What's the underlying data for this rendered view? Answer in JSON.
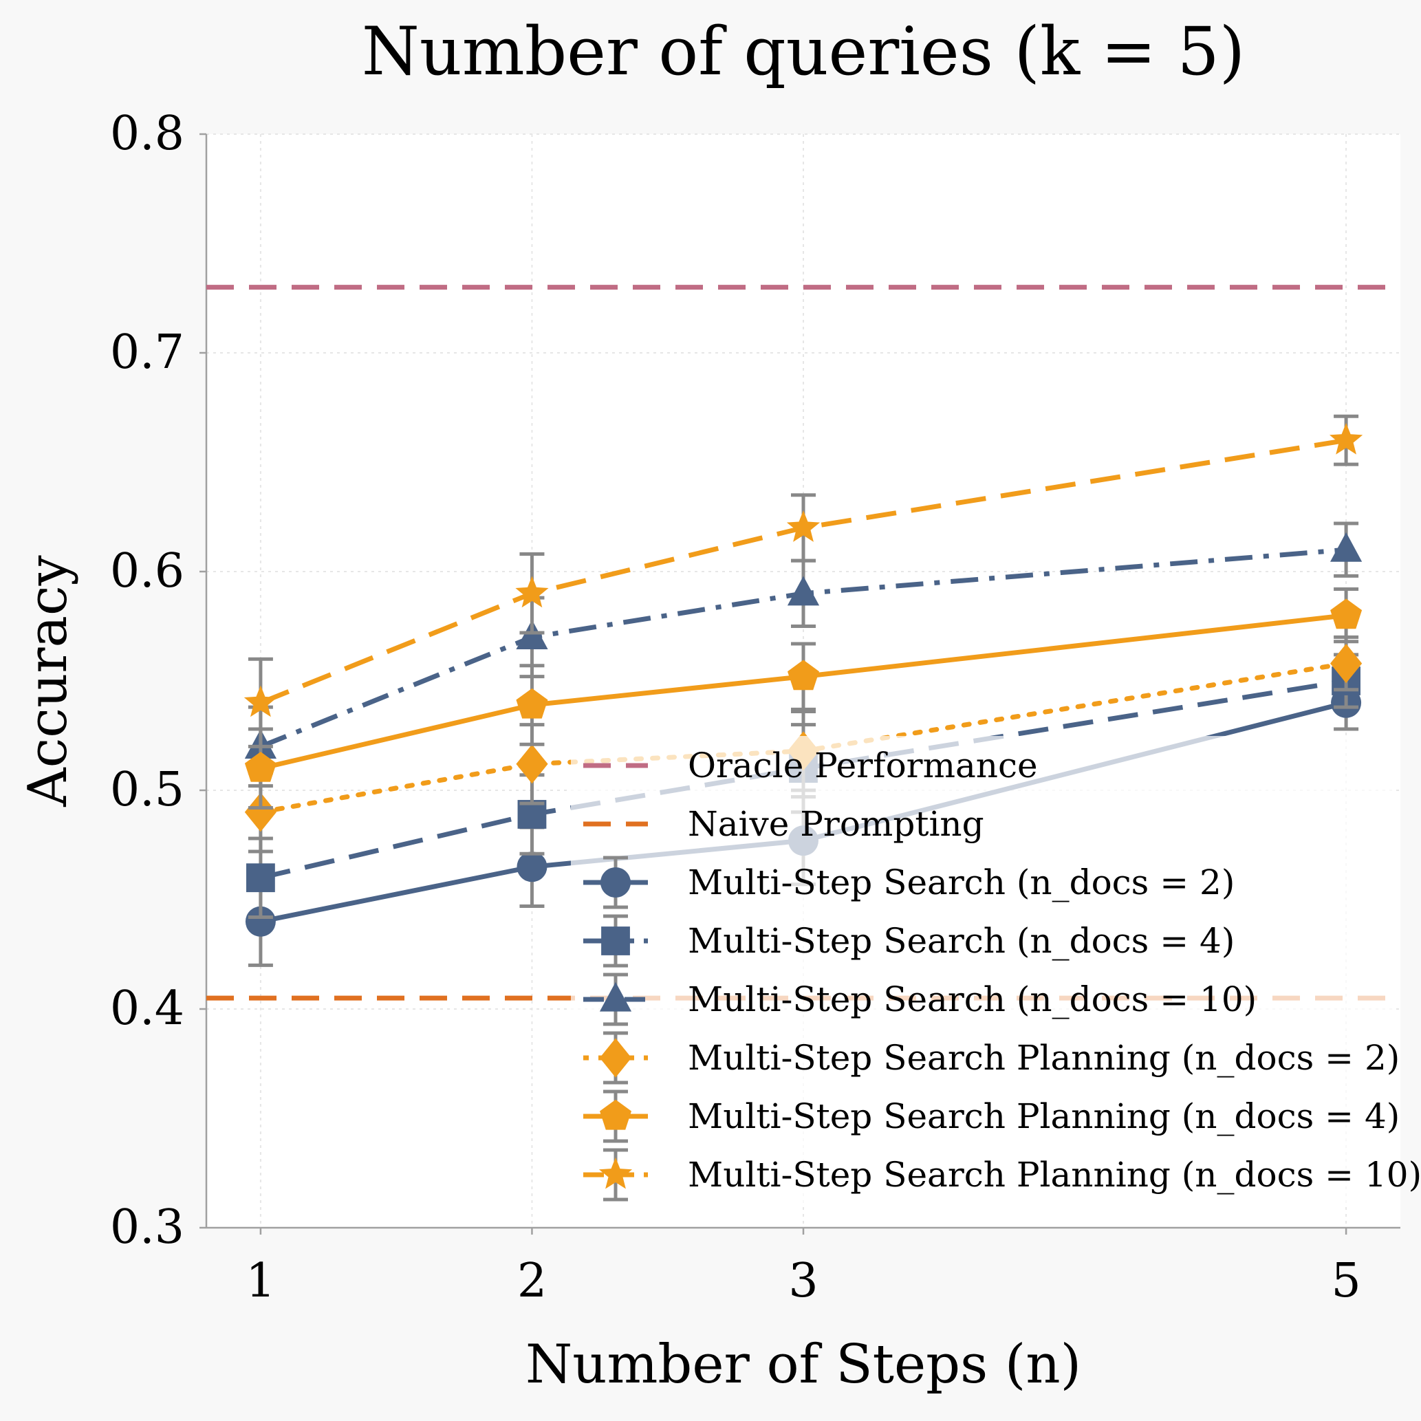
{
  "chart_data": {
    "type": "line",
    "title": "Number of queries (k = 5)",
    "xlabel": "Number of Steps (n)",
    "ylabel": "Accuracy",
    "x": [
      1,
      2,
      3,
      5
    ],
    "xticks": [
      "1",
      "2",
      "3",
      "5"
    ],
    "yticks": [
      "0.3",
      "0.4",
      "0.5",
      "0.6",
      "0.7",
      "0.8"
    ],
    "ylim": [
      0.3,
      0.8
    ],
    "xlim": [
      0.8,
      5.2
    ],
    "grid": true,
    "legend_position": "lower-right",
    "reference_lines": [
      {
        "name": "Oracle Performance",
        "value": 0.73,
        "color": "#c06c84",
        "style": "dashed"
      },
      {
        "name": "Naive Prompting",
        "value": 0.405,
        "color": "#e07020",
        "style": "dashed"
      }
    ],
    "series": [
      {
        "name": "Multi-Step Search (n_docs = 2)",
        "values": [
          0.44,
          0.465,
          0.477,
          0.54
        ],
        "errors": [
          0.02,
          0.018,
          0.02,
          0.012
        ],
        "color": "#4a6388",
        "marker": "circle",
        "style": "solid"
      },
      {
        "name": "Multi-Step Search (n_docs = 4)",
        "values": [
          0.46,
          0.489,
          0.51,
          0.55
        ],
        "errors": [
          0.018,
          0.018,
          0.02,
          0.012
        ],
        "color": "#4a6388",
        "marker": "square",
        "style": "dashed"
      },
      {
        "name": "Multi-Step Search (n_docs = 10)",
        "values": [
          0.52,
          0.57,
          0.59,
          0.61
        ],
        "errors": [
          0.018,
          0.018,
          0.015,
          0.012
        ],
        "color": "#4a6388",
        "marker": "triangle",
        "style": "dashdot"
      },
      {
        "name": "Multi-Step Search Planning (n_docs = 2)",
        "values": [
          0.49,
          0.512,
          0.518,
          0.558
        ],
        "errors": [
          0.018,
          0.018,
          0.018,
          0.012
        ],
        "color": "#f19c1a",
        "marker": "diamond",
        "style": "dotted"
      },
      {
        "name": "Multi-Step Search Planning (n_docs = 4)",
        "values": [
          0.51,
          0.539,
          0.552,
          0.58
        ],
        "errors": [
          0.018,
          0.018,
          0.015,
          0.012
        ],
        "color": "#f19c1a",
        "marker": "pentagon",
        "style": "solid"
      },
      {
        "name": "Multi-Step Search Planning (n_docs = 10)",
        "values": [
          0.54,
          0.59,
          0.62,
          0.66
        ],
        "errors": [
          0.02,
          0.018,
          0.015,
          0.011
        ],
        "color": "#f19c1a",
        "marker": "star",
        "style": "dashed"
      }
    ]
  }
}
